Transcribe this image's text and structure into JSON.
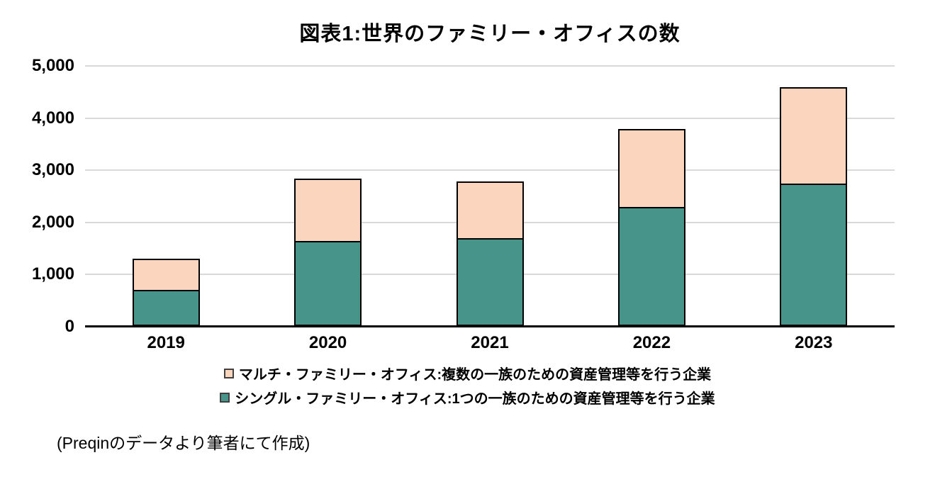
{
  "title": "図表1:世界のファミリー・オフィスの数",
  "source_note": "(Preqinのデータより筆者にて作成)",
  "colors": {
    "single_family": "#47948A",
    "multi_family": "#FCD5BF",
    "bar_border": "#000000",
    "gridline": "#D9D9D9",
    "axis": "#000000",
    "background": "#FFFFFF",
    "text": "#000000"
  },
  "chart_data": {
    "type": "bar",
    "stacked": true,
    "title": "図表1:世界のファミリー・オフィスの数",
    "categories": [
      "2019",
      "2020",
      "2021",
      "2022",
      "2023"
    ],
    "series": [
      {
        "name": "シングル・ファミリー・オフィス:1つの一族のための資産管理等を行う企業",
        "color": "#47948A",
        "values": [
          660,
          1600,
          1660,
          2250,
          2710
        ]
      },
      {
        "name": "マルチ・ファミリー・オフィス:複数の一族のための資産管理等を行う企業",
        "color": "#FCD5BF",
        "values": [
          630,
          1230,
          1110,
          1530,
          1870
        ]
      }
    ],
    "totals": [
      1290,
      2830,
      2770,
      3780,
      4580
    ],
    "xlabel": "",
    "ylabel": "",
    "ylim": [
      0,
      5000
    ],
    "yticks": {
      "values": [
        0,
        1000,
        2000,
        3000,
        4000,
        5000
      ],
      "labels": [
        "0",
        "1,000",
        "2,000",
        "3,000",
        "4,000",
        "5,000"
      ]
    },
    "grid": true,
    "legend_position": "bottom",
    "legend_order": "multi-first"
  }
}
